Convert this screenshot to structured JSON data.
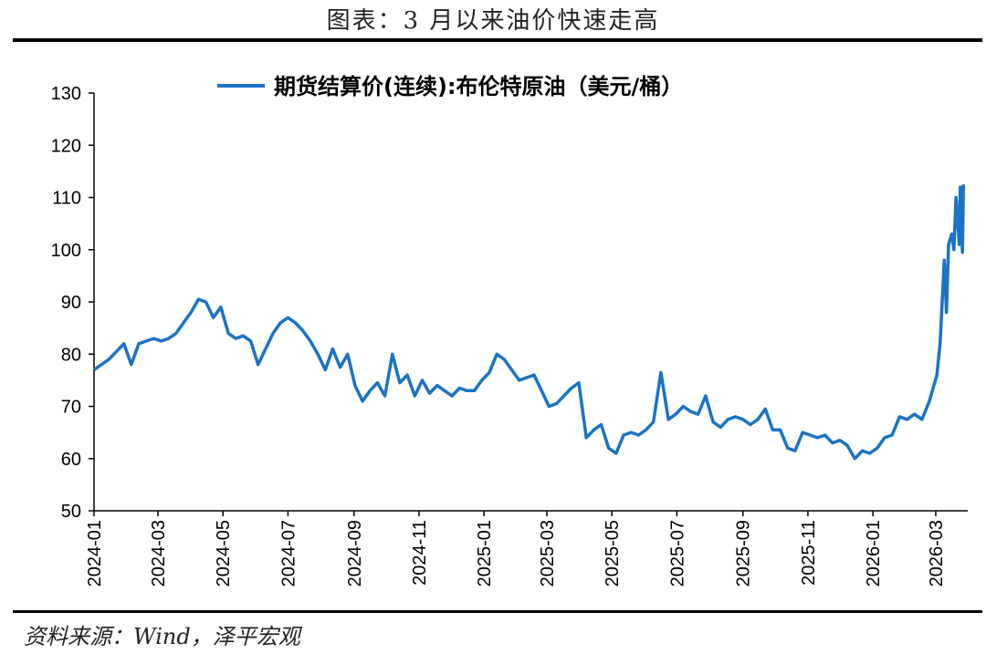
{
  "header": {
    "title": "图表：3 月以来油价快速走高"
  },
  "footer": {
    "source": "资料来源：Wind，泽平宏观"
  },
  "chart_data": {
    "type": "line",
    "series": [
      {
        "name": "期货结算价(连续):布伦特原油（美元/桶）",
        "color": "#1a73c5",
        "points": [
          [
            "2024-01-01",
            77
          ],
          [
            "2024-01-08",
            78
          ],
          [
            "2024-01-15",
            79
          ],
          [
            "2024-01-22",
            80.5
          ],
          [
            "2024-01-29",
            82
          ],
          [
            "2024-02-05",
            78
          ],
          [
            "2024-02-12",
            82
          ],
          [
            "2024-02-19",
            82.5
          ],
          [
            "2024-02-26",
            83
          ],
          [
            "2024-03-04",
            82.5
          ],
          [
            "2024-03-11",
            83
          ],
          [
            "2024-03-18",
            84
          ],
          [
            "2024-03-25",
            86
          ],
          [
            "2024-04-01",
            88
          ],
          [
            "2024-04-08",
            90.5
          ],
          [
            "2024-04-15",
            90
          ],
          [
            "2024-04-22",
            87
          ],
          [
            "2024-04-29",
            89
          ],
          [
            "2024-05-06",
            84
          ],
          [
            "2024-05-13",
            83
          ],
          [
            "2024-05-20",
            83.5
          ],
          [
            "2024-05-27",
            82.5
          ],
          [
            "2024-06-03",
            78
          ],
          [
            "2024-06-10",
            81
          ],
          [
            "2024-06-17",
            84
          ],
          [
            "2024-06-24",
            86
          ],
          [
            "2024-07-01",
            87
          ],
          [
            "2024-07-08",
            86
          ],
          [
            "2024-07-15",
            84.5
          ],
          [
            "2024-07-22",
            82.5
          ],
          [
            "2024-07-29",
            80
          ],
          [
            "2024-08-05",
            77
          ],
          [
            "2024-08-12",
            81
          ],
          [
            "2024-08-19",
            77.5
          ],
          [
            "2024-08-26",
            80
          ],
          [
            "2024-09-02",
            74
          ],
          [
            "2024-09-09",
            71
          ],
          [
            "2024-09-16",
            73
          ],
          [
            "2024-09-23",
            74.5
          ],
          [
            "2024-09-30",
            72
          ],
          [
            "2024-10-07",
            80
          ],
          [
            "2024-10-14",
            74.5
          ],
          [
            "2024-10-21",
            76
          ],
          [
            "2024-10-28",
            72
          ],
          [
            "2024-11-04",
            75
          ],
          [
            "2024-11-11",
            72.5
          ],
          [
            "2024-11-18",
            74
          ],
          [
            "2024-11-25",
            73
          ],
          [
            "2024-12-02",
            72
          ],
          [
            "2024-12-09",
            73.5
          ],
          [
            "2024-12-16",
            73
          ],
          [
            "2024-12-23",
            73
          ],
          [
            "2024-12-30",
            75
          ],
          [
            "2025-01-06",
            76.5
          ],
          [
            "2025-01-13",
            80
          ],
          [
            "2025-01-20",
            79
          ],
          [
            "2025-01-27",
            77
          ],
          [
            "2025-02-03",
            75
          ],
          [
            "2025-02-10",
            75.5
          ],
          [
            "2025-02-17",
            76
          ],
          [
            "2025-02-24",
            73
          ],
          [
            "2025-03-03",
            70
          ],
          [
            "2025-03-10",
            70.5
          ],
          [
            "2025-03-17",
            72
          ],
          [
            "2025-03-24",
            73.5
          ],
          [
            "2025-03-31",
            74.5
          ],
          [
            "2025-04-07",
            64
          ],
          [
            "2025-04-14",
            65.5
          ],
          [
            "2025-04-21",
            66.5
          ],
          [
            "2025-04-28",
            62
          ],
          [
            "2025-05-05",
            61
          ],
          [
            "2025-05-12",
            64.5
          ],
          [
            "2025-05-19",
            65
          ],
          [
            "2025-05-26",
            64.5
          ],
          [
            "2025-06-02",
            65.5
          ],
          [
            "2025-06-09",
            67
          ],
          [
            "2025-06-16",
            76.5
          ],
          [
            "2025-06-23",
            67.5
          ],
          [
            "2025-06-30",
            68.5
          ],
          [
            "2025-07-07",
            70
          ],
          [
            "2025-07-14",
            69
          ],
          [
            "2025-07-21",
            68.5
          ],
          [
            "2025-07-28",
            72
          ],
          [
            "2025-08-04",
            67
          ],
          [
            "2025-08-11",
            66
          ],
          [
            "2025-08-18",
            67.5
          ],
          [
            "2025-08-25",
            68
          ],
          [
            "2025-09-01",
            67.5
          ],
          [
            "2025-09-08",
            66.5
          ],
          [
            "2025-09-15",
            67.5
          ],
          [
            "2025-09-22",
            69.5
          ],
          [
            "2025-09-29",
            65.5
          ],
          [
            "2025-10-06",
            65.5
          ],
          [
            "2025-10-13",
            62
          ],
          [
            "2025-10-20",
            61.5
          ],
          [
            "2025-10-27",
            65
          ],
          [
            "2025-11-03",
            64.5
          ],
          [
            "2025-11-10",
            64
          ],
          [
            "2025-11-17",
            64.5
          ],
          [
            "2025-11-24",
            63
          ],
          [
            "2025-12-01",
            63.5
          ],
          [
            "2025-12-08",
            62.5
          ],
          [
            "2025-12-15",
            60
          ],
          [
            "2025-12-22",
            61.5
          ],
          [
            "2025-12-29",
            61
          ],
          [
            "2026-01-05",
            62
          ],
          [
            "2026-01-12",
            64
          ],
          [
            "2026-01-19",
            64.5
          ],
          [
            "2026-01-26",
            68
          ],
          [
            "2026-02-02",
            67.5
          ],
          [
            "2026-02-09",
            68.5
          ],
          [
            "2026-02-16",
            67.5
          ],
          [
            "2026-02-23",
            71
          ],
          [
            "2026-03-02",
            76
          ],
          [
            "2026-03-05",
            82
          ],
          [
            "2026-03-09",
            98
          ],
          [
            "2026-03-11",
            88
          ],
          [
            "2026-03-13",
            101
          ],
          [
            "2026-03-16",
            103
          ],
          [
            "2026-03-18",
            100
          ],
          [
            "2026-03-20",
            110
          ],
          [
            "2026-03-23",
            101
          ],
          [
            "2026-03-24",
            112
          ],
          [
            "2026-03-26",
            99.5
          ],
          [
            "2026-03-27",
            112.5
          ]
        ]
      }
    ],
    "ylim": [
      50,
      130
    ],
    "yticks": [
      50,
      60,
      70,
      80,
      90,
      100,
      110,
      120,
      130
    ],
    "xticks": [
      "2024-01",
      "2024-03",
      "2024-05",
      "2024-07",
      "2024-09",
      "2024-11",
      "2025-01",
      "2025-03",
      "2025-05",
      "2025-07",
      "2025-09",
      "2025-11",
      "2026-01",
      "2026-03"
    ],
    "legend_position": "top-center",
    "grid": false
  }
}
